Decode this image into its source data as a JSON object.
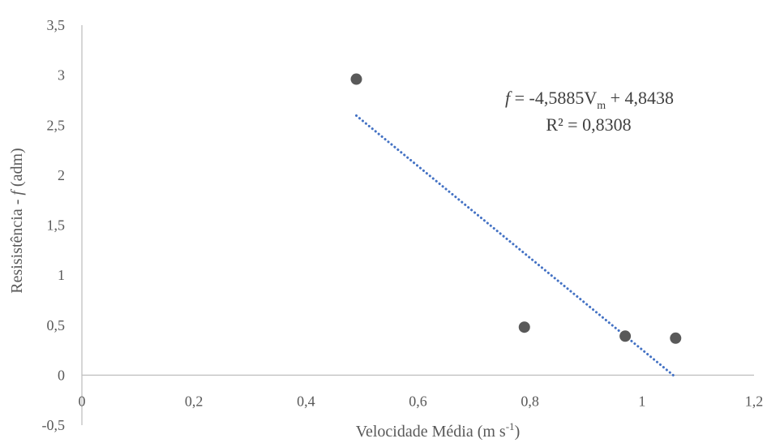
{
  "chart_data": {
    "type": "scatter",
    "title": "",
    "xlabel": {
      "main": "Velocidade Média (m s",
      "sup": "-1",
      "close": ")"
    },
    "ylabel": {
      "before": "Resisistência - ",
      "italic": "f",
      "after": " (adm)"
    },
    "xlim": [
      0,
      1.2
    ],
    "ylim": [
      -0.5,
      3.5
    ],
    "x_ticks": [
      {
        "value": 0,
        "label": "0"
      },
      {
        "value": 0.2,
        "label": "0,2"
      },
      {
        "value": 0.4,
        "label": "0,4"
      },
      {
        "value": 0.6,
        "label": "0,6"
      },
      {
        "value": 0.8,
        "label": "0,8"
      },
      {
        "value": 1.0,
        "label": "1"
      },
      {
        "value": 1.2,
        "label": "1,2"
      }
    ],
    "y_ticks": [
      {
        "value": -0.5,
        "label": "-0,5"
      },
      {
        "value": 0,
        "label": "0"
      },
      {
        "value": 0.5,
        "label": "0,5"
      },
      {
        "value": 1,
        "label": "1"
      },
      {
        "value": 1.5,
        "label": "1,5"
      },
      {
        "value": 2,
        "label": "2"
      },
      {
        "value": 2.5,
        "label": "2,5"
      },
      {
        "value": 3,
        "label": "3"
      },
      {
        "value": 3.5,
        "label": "3,5"
      }
    ],
    "grid": false,
    "legend": "none",
    "points": [
      {
        "x": 0.49,
        "y": 2.96
      },
      {
        "x": 0.79,
        "y": 0.48
      },
      {
        "x": 0.97,
        "y": 0.39
      },
      {
        "x": 1.06,
        "y": 0.37
      }
    ],
    "trendline": {
      "type": "linear",
      "slope": -4.5885,
      "intercept": 4.8438,
      "x_range": [
        0.49,
        1.06
      ],
      "color": "#4472C4",
      "style": "dotted"
    },
    "annotation": {
      "equation": {
        "f": "f",
        "eq": " = -4,5885V",
        "sub": "m",
        "rest": " + 4,8438"
      },
      "r2": "R² = 0,8308"
    },
    "colors": {
      "marker": "#595959",
      "axis": "#BFBFBF",
      "trend": "#4472C4"
    }
  }
}
